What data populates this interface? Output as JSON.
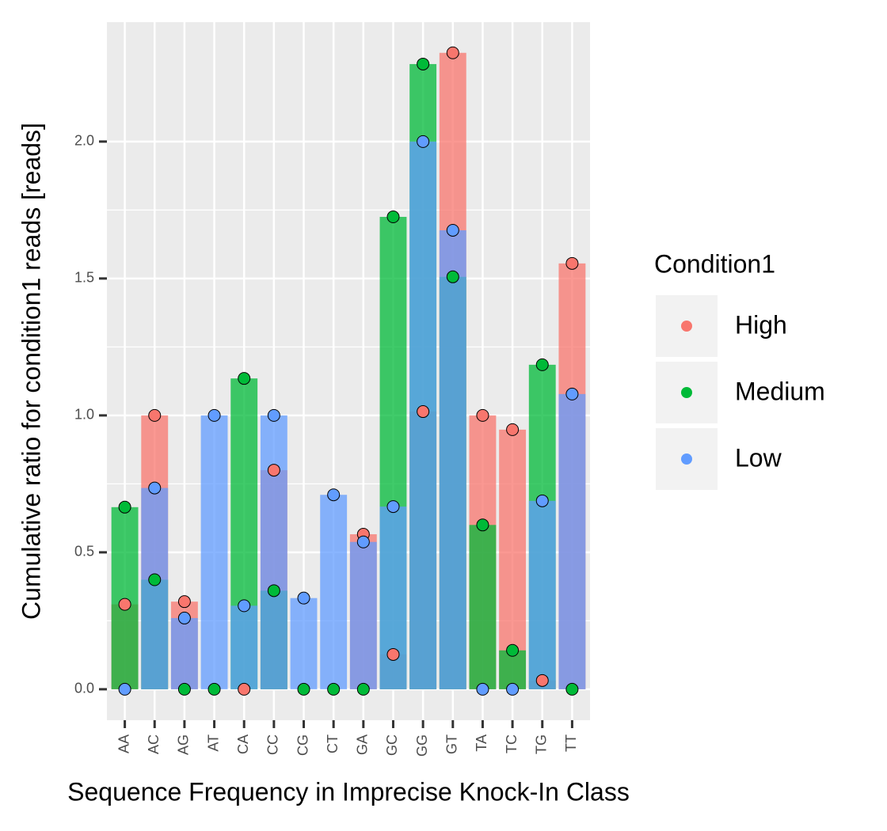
{
  "chart_data": {
    "type": "bar",
    "x_label": "Sequence Frequency in Imprecise Knock-In Class",
    "y_label": "Cumulative ratio for condition1 reads [reads]",
    "legend_title": "Condition1",
    "legend_position": "right",
    "grid": true,
    "categories": [
      "AA",
      "AC",
      "AG",
      "AT",
      "CA",
      "CC",
      "CG",
      "CT",
      "GA",
      "GC",
      "GG",
      "GT",
      "TA",
      "TC",
      "TG",
      "TT"
    ],
    "series": [
      {
        "name": "High",
        "color": "#F8766D",
        "values": [
          0.31,
          1.0,
          0.32,
          null,
          0,
          0.8,
          null,
          null,
          0.566,
          0.127,
          1.014,
          2.324,
          1.0,
          0.948,
          0.032,
          1.555
        ]
      },
      {
        "name": "Medium",
        "color": "#00BA38",
        "values": [
          0.665,
          0.4,
          0,
          0,
          1.135,
          0.36,
          0,
          0,
          0,
          1.725,
          2.283,
          1.506,
          0.6,
          0.142,
          1.185,
          0
        ]
      },
      {
        "name": "Low",
        "color": "#619CFF",
        "values": [
          0,
          0.735,
          0.26,
          1.0,
          0.305,
          1.0,
          0.333,
          0.71,
          0.538,
          0.667,
          2.0,
          1.676,
          0,
          0,
          0.688,
          1.078
        ]
      }
    ],
    "ylim": [
      -0.113,
      2.436
    ],
    "yticks": [
      {
        "value": 0,
        "label": "0.0"
      },
      0.5,
      {
        "value": 1,
        "label": "1.0"
      },
      1.5,
      {
        "value": 2,
        "label": "2.0"
      }
    ]
  }
}
